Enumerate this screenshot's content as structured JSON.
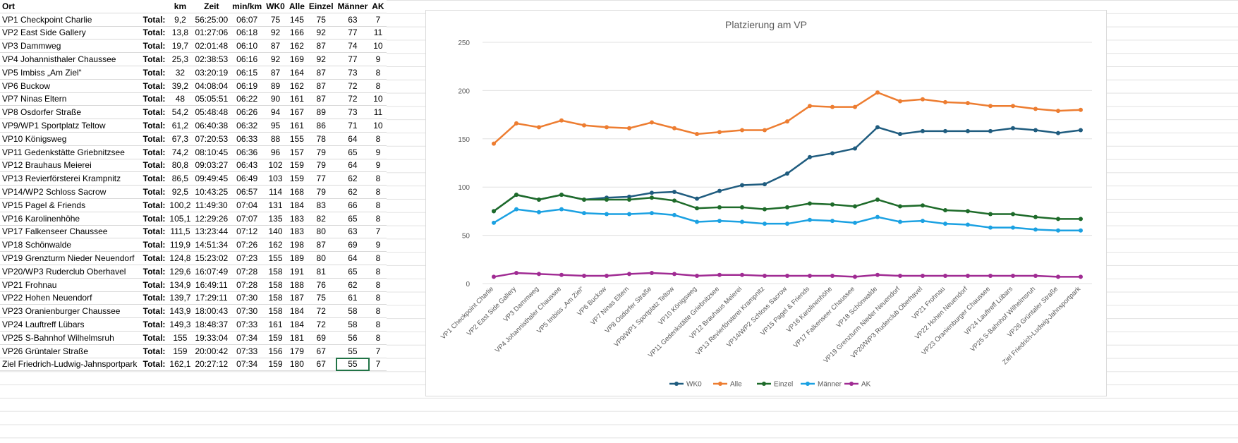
{
  "table": {
    "headers": [
      "Ort",
      "",
      "km",
      "Zeit",
      "min/km",
      "WK0",
      "Alle",
      "Einzel",
      "Männer",
      "AK"
    ],
    "total_label": "Total:",
    "rows": [
      [
        "VP1 Checkpoint Charlie",
        "9,2",
        "56:25:00",
        "06:07",
        "75",
        "145",
        "75",
        "63",
        "7"
      ],
      [
        "VP2 East Side Gallery",
        "13,8",
        "01:27:06",
        "06:18",
        "92",
        "166",
        "92",
        "77",
        "11"
      ],
      [
        "VP3 Dammweg",
        "19,7",
        "02:01:48",
        "06:10",
        "87",
        "162",
        "87",
        "74",
        "10"
      ],
      [
        "VP4 Johannisthaler Chaussee",
        "25,3",
        "02:38:53",
        "06:16",
        "92",
        "169",
        "92",
        "77",
        "9"
      ],
      [
        "VP5 Imbiss „Am Ziel“",
        "32",
        "03:20:19",
        "06:15",
        "87",
        "164",
        "87",
        "73",
        "8"
      ],
      [
        "VP6 Buckow",
        "39,2",
        "04:08:04",
        "06:19",
        "89",
        "162",
        "87",
        "72",
        "8"
      ],
      [
        "VP7 Ninas Eltern",
        "48",
        "05:05:51",
        "06:22",
        "90",
        "161",
        "87",
        "72",
        "10"
      ],
      [
        "VP8 Osdorfer Straße",
        "54,2",
        "05:48:48",
        "06:26",
        "94",
        "167",
        "89",
        "73",
        "11"
      ],
      [
        "VP9/WP1 Sportplatz Teltow",
        "61,2",
        "06:40:38",
        "06:32",
        "95",
        "161",
        "86",
        "71",
        "10"
      ],
      [
        "VP10 Königsweg",
        "67,3",
        "07:20:53",
        "06:33",
        "88",
        "155",
        "78",
        "64",
        "8"
      ],
      [
        "VP11 Gedenkstätte Griebnitzsee",
        "74,2",
        "08:10:45",
        "06:36",
        "96",
        "157",
        "79",
        "65",
        "9"
      ],
      [
        "VP12 Brauhaus Meierei",
        "80,8",
        "09:03:27",
        "06:43",
        "102",
        "159",
        "79",
        "64",
        "9"
      ],
      [
        "VP13 Revierförsterei Krampnitz",
        "86,5",
        "09:49:45",
        "06:49",
        "103",
        "159",
        "77",
        "62",
        "8"
      ],
      [
        "VP14/WP2 Schloss Sacrow",
        "92,5",
        "10:43:25",
        "06:57",
        "114",
        "168",
        "79",
        "62",
        "8"
      ],
      [
        "VP15 Pagel & Friends",
        "100,2",
        "11:49:30",
        "07:04",
        "131",
        "184",
        "83",
        "66",
        "8"
      ],
      [
        "VP16 Karolinenhöhe",
        "105,1",
        "12:29:26",
        "07:07",
        "135",
        "183",
        "82",
        "65",
        "8"
      ],
      [
        "VP17 Falkenseer Chaussee",
        "111,5",
        "13:23:44",
        "07:12",
        "140",
        "183",
        "80",
        "63",
        "7"
      ],
      [
        "VP18 Schönwalde",
        "119,9",
        "14:51:34",
        "07:26",
        "162",
        "198",
        "87",
        "69",
        "9"
      ],
      [
        "VP19 Grenzturm Nieder Neuendorf",
        "124,8",
        "15:23:02",
        "07:23",
        "155",
        "189",
        "80",
        "64",
        "8"
      ],
      [
        "VP20/WP3 Ruderclub Oberhavel",
        "129,6",
        "16:07:49",
        "07:28",
        "158",
        "191",
        "81",
        "65",
        "8"
      ],
      [
        "VP21 Frohnau",
        "134,9",
        "16:49:11",
        "07:28",
        "158",
        "188",
        "76",
        "62",
        "8"
      ],
      [
        "VP22 Hohen Neuendorf",
        "139,7",
        "17:29:11",
        "07:30",
        "158",
        "187",
        "75",
        "61",
        "8"
      ],
      [
        "VP23 Oranienburger Chaussee",
        "143,9",
        "18:00:43",
        "07:30",
        "158",
        "184",
        "72",
        "58",
        "8"
      ],
      [
        "VP24 Lauftreff Lübars",
        "149,3",
        "18:48:37",
        "07:33",
        "161",
        "184",
        "72",
        "58",
        "8"
      ],
      [
        "VP25 S-Bahnhof Wilhelmsruh",
        "155",
        "19:33:04",
        "07:34",
        "159",
        "181",
        "69",
        "56",
        "8"
      ],
      [
        "VP26 Grüntaler Straße",
        "159",
        "20:00:42",
        "07:33",
        "156",
        "179",
        "67",
        "55",
        "7"
      ],
      [
        "Ziel Friedrich-Ludwig-Jahnsportpark",
        "162,1",
        "20:27:12",
        "07:34",
        "159",
        "180",
        "67",
        "55",
        "7"
      ]
    ]
  },
  "chart_data": {
    "type": "line",
    "title": "Platzierung am VP",
    "ylim": [
      0,
      250
    ],
    "yticks": [
      0,
      50,
      100,
      150,
      200,
      250
    ],
    "categories": [
      "VP1 Checkpoint Charlie",
      "VP2 East Side Gallery",
      "VP3 Dammweg",
      "VP4 Johannisthaler Chaussee",
      "VP5 Imbiss „Am Ziel“",
      "VP6 Buckow",
      "VP7 Ninas Eltern",
      "VP8 Osdorfer Straße",
      "VP9/WP1 Sportplatz Teltow",
      "VP10 Königsweg",
      "VP11 Gedenkstätte Griebnitzsee",
      "VP12 Brauhaus Meierei",
      "VP13 Revierförsterei Krampnitz",
      "VP14/WP2 Schloss Sacrow",
      "VP15 Pagel & Friends",
      "VP16 Karolinenhöhe",
      "VP17 Falkenseer Chaussee",
      "VP18 Schönwalde",
      "VP19 Grenzturm Nieder Neuendorf",
      "VP20/WP3 Ruderclub Oberhavel",
      "VP21 Frohnau",
      "VP22 Hohen Neuendorf",
      "VP23 Oranienburger Chaussee",
      "VP24 Lauftreff Lübars",
      "VP25 S-Bahnhof Wilhelmsruh",
      "VP26 Grüntaler Straße",
      "Ziel Friedrich-Ludwig-Jahnsportpark"
    ],
    "legend_position": "bottom",
    "series": [
      {
        "name": "WK0",
        "color": "#1f5c7f",
        "values": [
          75,
          92,
          87,
          92,
          87,
          89,
          90,
          94,
          95,
          88,
          96,
          102,
          103,
          114,
          131,
          135,
          140,
          162,
          155,
          158,
          158,
          158,
          158,
          161,
          159,
          156,
          159
        ]
      },
      {
        "name": "Alle",
        "color": "#ed7d31",
        "values": [
          145,
          166,
          162,
          169,
          164,
          162,
          161,
          167,
          161,
          155,
          157,
          159,
          159,
          168,
          184,
          183,
          183,
          198,
          189,
          191,
          188,
          187,
          184,
          184,
          181,
          179,
          180
        ]
      },
      {
        "name": "Einzel",
        "color": "#1e6b2a",
        "values": [
          75,
          92,
          87,
          92,
          87,
          87,
          87,
          89,
          86,
          78,
          79,
          79,
          77,
          79,
          83,
          82,
          80,
          87,
          80,
          81,
          76,
          75,
          72,
          72,
          69,
          67,
          67
        ]
      },
      {
        "name": "Männer",
        "color": "#1ba1e2",
        "values": [
          63,
          77,
          74,
          77,
          73,
          72,
          72,
          73,
          71,
          64,
          65,
          64,
          62,
          62,
          66,
          65,
          63,
          69,
          64,
          65,
          62,
          61,
          58,
          58,
          56,
          55,
          55
        ]
      },
      {
        "name": "AK",
        "color": "#a02b93",
        "values": [
          7,
          11,
          10,
          9,
          8,
          8,
          10,
          11,
          10,
          8,
          9,
          9,
          8,
          8,
          8,
          8,
          7,
          9,
          8,
          8,
          8,
          8,
          8,
          8,
          8,
          7,
          7
        ]
      }
    ]
  }
}
